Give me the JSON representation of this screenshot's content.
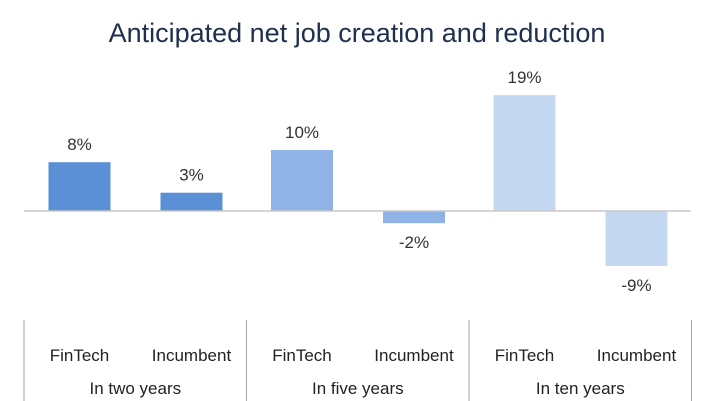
{
  "chart_data": {
    "type": "bar",
    "title": "Anticipated net job creation and reduction",
    "groups": [
      {
        "label": "In two years",
        "categories": [
          "FinTech",
          "Incumbent"
        ],
        "values": [
          8,
          3
        ],
        "labels": [
          "8%",
          "3%"
        ]
      },
      {
        "label": "In five years",
        "categories": [
          "FinTech",
          "Incumbent"
        ],
        "values": [
          10,
          -2
        ],
        "labels": [
          "10%",
          "-2%"
        ]
      },
      {
        "label": "In ten years",
        "categories": [
          "FinTech",
          "Incumbent"
        ],
        "values": [
          19,
          -9
        ],
        "labels": [
          "19%",
          "-9%"
        ]
      }
    ],
    "unit": "%",
    "ylim": [
      -9,
      19
    ],
    "grid": false,
    "legend": "none",
    "colors": {
      "two_years": "#5b8fd6",
      "five_years": "#8fb3e6",
      "ten_years": "#c5d8f2",
      "axis": "#c8c8c8",
      "separator": "#a6a6a6",
      "title": "#1f2f4f"
    }
  }
}
